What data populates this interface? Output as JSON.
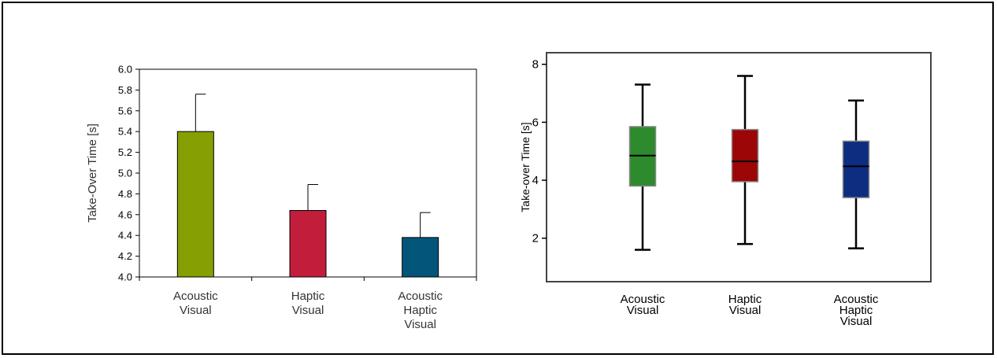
{
  "chart_data": [
    {
      "type": "bar",
      "ylabel": "Take-Over  Time [s]",
      "ylim": [
        4.0,
        6.0
      ],
      "yticks": [
        4.0,
        4.2,
        4.4,
        4.6,
        4.8,
        5.0,
        5.2,
        5.4,
        5.6,
        5.8,
        6.0
      ],
      "categories": [
        [
          "Acoustic",
          "Visual"
        ],
        [
          "Haptic",
          "Visual"
        ],
        [
          "Acoustic",
          "Haptic",
          "Visual"
        ]
      ],
      "values": [
        5.4,
        4.64,
        4.38
      ],
      "error_upper": [
        0.36,
        0.25,
        0.24
      ],
      "colors": [
        "#869f02",
        "#c31d3c",
        "#04557a"
      ],
      "grid": false
    },
    {
      "type": "box",
      "ylabel": "Take-over Time [s]",
      "ylim": [
        0.5,
        8.4
      ],
      "yticks": [
        2,
        4,
        6,
        8
      ],
      "categories": [
        [
          "Acoustic",
          "Visual"
        ],
        [
          "Haptic",
          "Visual"
        ],
        [
          "Acoustic",
          "Haptic",
          "Visual"
        ]
      ],
      "boxes": [
        {
          "min": 1.6,
          "q1": 3.8,
          "median": 4.85,
          "q3": 5.85,
          "max": 7.3
        },
        {
          "min": 1.8,
          "q1": 3.95,
          "median": 4.65,
          "q3": 5.75,
          "max": 7.6
        },
        {
          "min": 1.65,
          "q1": 3.4,
          "median": 4.48,
          "q3": 5.35,
          "max": 6.75
        }
      ],
      "colors": [
        "#2d8a2d",
        "#9c0606",
        "#0d2d80"
      ],
      "grid": false
    }
  ]
}
